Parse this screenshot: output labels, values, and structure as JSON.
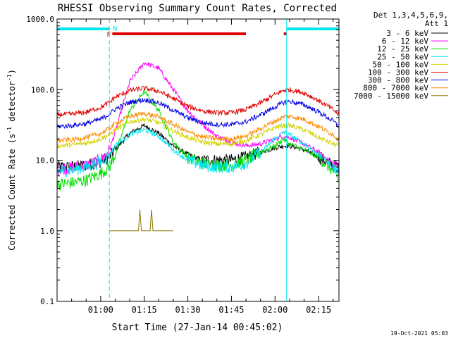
{
  "chart_data": {
    "type": "line",
    "title": "RHESSI Observing Summary Count Rates, Corrected",
    "xlabel": "Start Time (27-Jan-14 00:45:02)",
    "ylabel_main": "Corrected Count Rate (s",
    "ylabel_sup1": "-1",
    "ylabel_mid": " detector",
    "ylabel_sup2": "-1",
    "ylabel_end": ")",
    "yscale": "log",
    "ylim": [
      0.1,
      1000
    ],
    "xlim_minutes": [
      0,
      97
    ],
    "x_ticks": [
      {
        "label": "01:00",
        "minute": 15
      },
      {
        "label": "01:15",
        "minute": 30
      },
      {
        "label": "01:30",
        "minute": 45
      },
      {
        "label": "01:45",
        "minute": 60
      },
      {
        "label": "02:00",
        "minute": 75
      },
      {
        "label": "02:15",
        "minute": 90
      }
    ],
    "y_ticks": [
      {
        "label": "0.1",
        "value": 0.1
      },
      {
        "label": "1.0",
        "value": 1
      },
      {
        "label": "10.0",
        "value": 10
      },
      {
        "label": "100.0",
        "value": 100
      },
      {
        "label": "1000.0",
        "value": 1000
      }
    ],
    "legend_header": [
      "Det 1,3,4,5,6,9,",
      "Att 1"
    ],
    "legend_position": "right",
    "timestamp": "19-Oct-2021 05:03",
    "flags": {
      "night_label": "N",
      "flare_label": "F",
      "night_color": "#00e5ee",
      "flare_color": "#e00000",
      "night_bars": [
        [
          0,
          18
        ],
        [
          79,
          97
        ]
      ],
      "flare_bars": [
        [
          19,
          65
        ],
        [
          78,
          79
        ]
      ],
      "solid_vlines": [
        0,
        79
      ],
      "dashed_vlines": [
        18,
        97
      ]
    },
    "series": [
      {
        "name": "3 - 6 keV",
        "color": "#000000",
        "x": [
          0,
          5,
          10,
          15,
          18,
          20,
          25,
          30,
          35,
          40,
          45,
          50,
          55,
          60,
          65,
          70,
          75,
          78,
          80,
          85,
          90,
          95,
          97
        ],
        "y": [
          8,
          8,
          8.5,
          9.5,
          11,
          14,
          24,
          31,
          24,
          16,
          12,
          10,
          10,
          10,
          11,
          13,
          15,
          16,
          16,
          14,
          11,
          8.5,
          8
        ]
      },
      {
        "name": "6 - 12 keV",
        "color": "#ff00ff",
        "x": [
          0,
          5,
          10,
          15,
          18,
          20,
          25,
          30,
          35,
          40,
          45,
          50,
          55,
          60,
          65,
          70,
          75,
          78,
          80,
          85,
          90,
          95,
          97
        ],
        "y": [
          7.5,
          7.8,
          8.5,
          10,
          14,
          25,
          130,
          240,
          200,
          100,
          50,
          32,
          22,
          18,
          16,
          17,
          20,
          22,
          21,
          17,
          13,
          9,
          7.5
        ]
      },
      {
        "name": "12 - 25 keV",
        "color": "#00e000",
        "x": [
          0,
          5,
          10,
          15,
          18,
          20,
          25,
          30,
          35,
          40,
          45,
          50,
          55,
          60,
          65,
          70,
          75,
          78,
          80,
          85,
          90,
          95,
          97
        ],
        "y": [
          4.5,
          4.8,
          5.2,
          6.5,
          8,
          12,
          50,
          95,
          50,
          18,
          11,
          9,
          8.5,
          8.5,
          10,
          13,
          16,
          20,
          17,
          14,
          11,
          7,
          5
        ]
      },
      {
        "name": "25 - 50 keV",
        "color": "#00e5ee",
        "x": [
          0,
          5,
          10,
          15,
          18,
          20,
          25,
          30,
          35,
          40,
          45,
          50,
          55,
          60,
          65,
          70,
          75,
          78,
          80,
          85,
          90,
          95,
          97
        ],
        "y": [
          7,
          7.3,
          8,
          9.5,
          12,
          16,
          23,
          27,
          22,
          14,
          10,
          8.5,
          8,
          8,
          9,
          13,
          20,
          25,
          23,
          17,
          12,
          8,
          7
        ]
      },
      {
        "name": "50 - 100 keV",
        "color": "#d4d400",
        "x": [
          0,
          5,
          10,
          15,
          18,
          20,
          25,
          30,
          35,
          40,
          45,
          50,
          55,
          60,
          65,
          70,
          75,
          78,
          80,
          85,
          90,
          95,
          97
        ],
        "y": [
          16,
          16.5,
          17.5,
          20,
          23,
          27,
          35,
          38,
          34,
          26,
          21,
          18,
          17,
          17,
          19,
          23,
          29,
          31,
          31,
          27,
          21,
          17,
          16
        ]
      },
      {
        "name": "100 - 300 keV",
        "color": "#e00000",
        "x": [
          0,
          5,
          10,
          15,
          18,
          20,
          25,
          30,
          35,
          40,
          45,
          50,
          55,
          60,
          65,
          70,
          75,
          78,
          80,
          85,
          90,
          95,
          97
        ],
        "y": [
          44,
          45,
          48,
          56,
          66,
          78,
          97,
          105,
          95,
          75,
          58,
          50,
          47,
          47,
          52,
          65,
          85,
          98,
          100,
          90,
          70,
          52,
          44
        ]
      },
      {
        "name": "300 - 800 keV",
        "color": "#0000e0",
        "x": [
          0,
          5,
          10,
          15,
          18,
          20,
          25,
          30,
          35,
          40,
          45,
          50,
          55,
          60,
          65,
          70,
          75,
          78,
          80,
          85,
          90,
          95,
          97
        ],
        "y": [
          30,
          31,
          33,
          38,
          45,
          53,
          66,
          72,
          65,
          51,
          40,
          34,
          32,
          32,
          35,
          44,
          57,
          66,
          68,
          61,
          48,
          36,
          30
        ]
      },
      {
        "name": "800 - 7000 keV",
        "color": "#ff8c00",
        "x": [
          0,
          5,
          10,
          15,
          18,
          20,
          25,
          30,
          35,
          40,
          45,
          50,
          55,
          60,
          65,
          70,
          75,
          78,
          80,
          85,
          90,
          95,
          97
        ],
        "y": [
          19,
          19.5,
          21,
          24,
          28,
          33,
          42,
          46,
          41,
          32,
          25,
          21.5,
          20,
          20,
          22,
          28,
          36,
          41,
          42,
          38,
          30,
          23,
          19
        ]
      },
      {
        "name": "7000 - 15000 keV",
        "color": "#8b7500",
        "x": [
          18,
          20,
          25,
          28,
          28.5,
          29,
          30,
          32,
          32.5,
          33,
          36,
          40
        ],
        "y": [
          1,
          1,
          1,
          1,
          2,
          1,
          1,
          1,
          2,
          1,
          1,
          1
        ]
      }
    ]
  }
}
